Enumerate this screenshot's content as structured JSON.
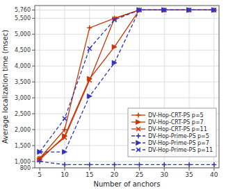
{
  "chart_data": {
    "type": "line",
    "x": [
      5,
      10,
      15,
      20,
      25,
      30,
      35,
      40
    ],
    "xlabel": "Number of anchors",
    "ylabel": "Average localization time (msec)",
    "xlim": [
      4,
      41
    ],
    "ylim": [
      800,
      5900
    ],
    "xticks": [
      5,
      10,
      15,
      20,
      25,
      30,
      35,
      40
    ],
    "yticks": [
      800,
      {
        "value": 1000,
        "label": "1,000"
      },
      {
        "value": 1500,
        "label": "1,500"
      },
      {
        "value": 2000,
        "label": "2,000"
      },
      {
        "value": 2500,
        "label": "2,500"
      },
      {
        "value": 3000,
        "label": "3,000"
      },
      {
        "value": 3500,
        "label": "3,500"
      },
      {
        "value": 4000,
        "label": "4,000"
      },
      {
        "value": 4500,
        "label": "4,500"
      },
      {
        "value": 5000,
        "label": "5,000"
      },
      {
        "value": 5500,
        "label": "5,500"
      },
      {
        "value": 5760,
        "label": "5,760"
      }
    ],
    "grid": true,
    "legend": "lower right",
    "series": [
      {
        "name": "DV-Hop-CRT-PS p=5",
        "color": "#cc3300",
        "marker": "plus",
        "line_style": "solid",
        "values": [
          1100,
          2000,
          5200,
          5500,
          5760,
          5760,
          5760,
          5760
        ]
      },
      {
        "name": "DV-Hop-CRT-PS p=7",
        "color": "#cc3300",
        "marker": "triangle-right",
        "line_style": "solid",
        "values": [
          1050,
          1800,
          3600,
          4600,
          5760,
          5760,
          5760,
          5760
        ]
      },
      {
        "name": "DV-Hop-CRT-PS p=11",
        "color": "#cc3300",
        "marker": "x",
        "line_style": "solid",
        "values": [
          1100,
          1750,
          3550,
          5490,
          5760,
          5760,
          5760,
          5760
        ]
      },
      {
        "name": "DV-Hop-Prime-PS p=5",
        "color": "#3333bb",
        "marker": "plus",
        "line_style": "dashed",
        "values": [
          1000,
          900,
          900,
          900,
          900,
          900,
          900,
          900
        ]
      },
      {
        "name": "DV-Hop-Prime-PS p=7",
        "color": "#3333bb",
        "marker": "triangle-right",
        "line_style": "dashed",
        "values": [
          1300,
          1300,
          3050,
          4100,
          5760,
          5760,
          5760,
          5760
        ]
      },
      {
        "name": "DV-Hop-Prime-PS p=11",
        "color": "#3333bb",
        "marker": "x",
        "line_style": "dashed",
        "values": [
          1300,
          2350,
          4550,
          5450,
          5760,
          5760,
          5760,
          5760
        ]
      }
    ]
  }
}
